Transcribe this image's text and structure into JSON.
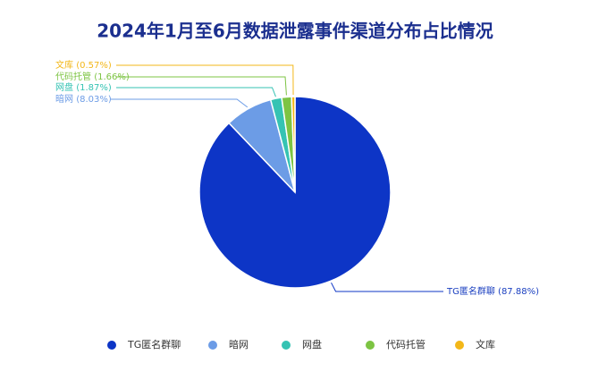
{
  "chart_data": {
    "type": "pie",
    "title": "2024年1月至6月数据泄露事件渠道分布占比情况",
    "categories": [
      "TG匿名群聊",
      "暗网",
      "网盘",
      "代码托管",
      "文库"
    ],
    "values": [
      87.88,
      8.03,
      1.87,
      1.66,
      0.57
    ],
    "value_labels": [
      "(87.88%)",
      "(8.03%)",
      "(1.87%)",
      "(1.66%)",
      "(0.57%)"
    ],
    "colors": [
      "#0d35c6",
      "#6c9ce6",
      "#35c3b3",
      "#7dc443",
      "#f3b719"
    ],
    "legend": "bottom"
  }
}
